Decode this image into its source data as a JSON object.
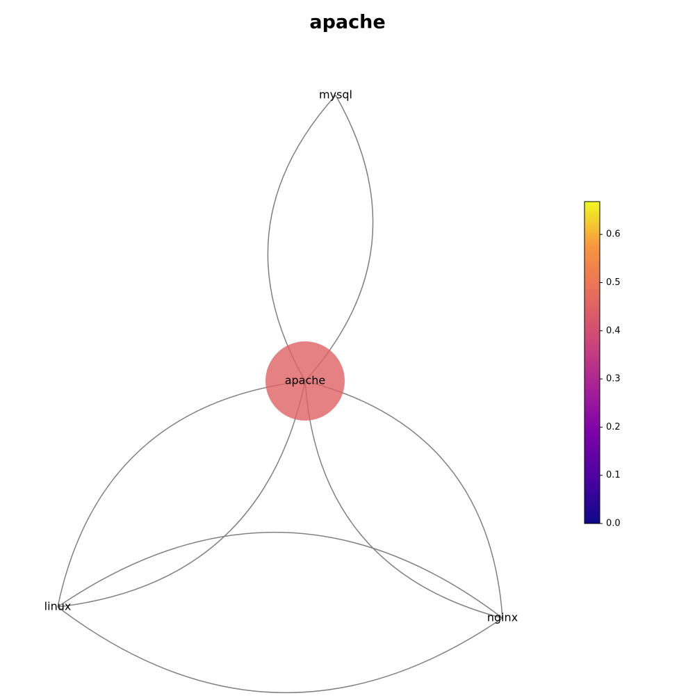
{
  "chart_data": {
    "type": "network",
    "title": "apache",
    "nodes": [
      {
        "label": "apache",
        "value": 0.45
      },
      {
        "label": "mysql",
        "value": null
      },
      {
        "label": "linux",
        "value": null
      },
      {
        "label": "nginx",
        "value": null
      }
    ],
    "edges": [
      [
        "apache",
        "mysql"
      ],
      [
        "mysql",
        "apache"
      ],
      [
        "apache",
        "linux"
      ],
      [
        "linux",
        "apache"
      ],
      [
        "apache",
        "nginx"
      ],
      [
        "nginx",
        "apache"
      ],
      [
        "linux",
        "nginx"
      ],
      [
        "nginx",
        "linux"
      ]
    ],
    "colormap": "plasma",
    "clim": [
      0,
      0.668
    ],
    "cticks": [
      0.0,
      0.1,
      0.2,
      0.3,
      0.4,
      0.5,
      0.6
    ]
  }
}
